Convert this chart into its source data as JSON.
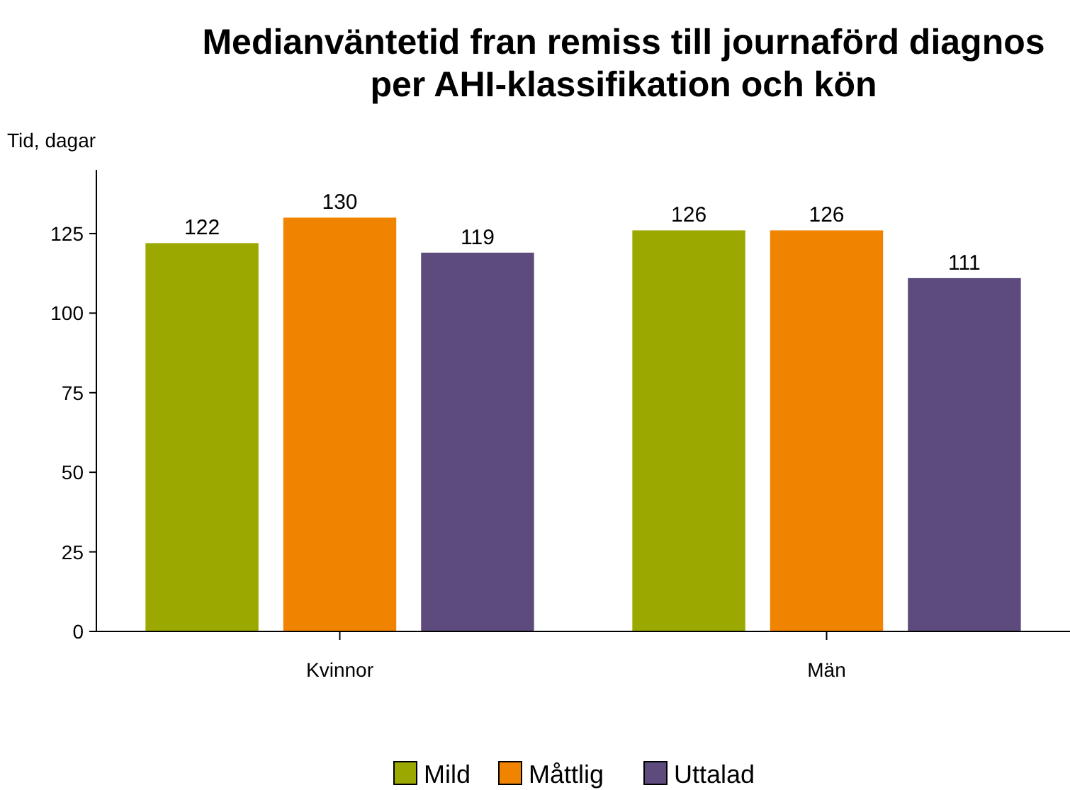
{
  "chart_data": {
    "type": "bar",
    "title": "Medianväntetid fran remiss till journaförd diagnos\nper AHI-klassifikation och kön",
    "ylabel": "Tid, dagar",
    "categories": [
      "Kvinnor",
      "Män"
    ],
    "series": [
      {
        "name": "Mild",
        "color": "#9aa800",
        "values": [
          122,
          126
        ]
      },
      {
        "name": "Måttlig",
        "color": "#f08300",
        "values": [
          130,
          126
        ]
      },
      {
        "name": "Uttalad",
        "color": "#5e4b7d",
        "values": [
          119,
          111
        ]
      }
    ],
    "ylim": [
      0,
      145
    ],
    "yticks": [
      0,
      25,
      50,
      75,
      100,
      125
    ],
    "data_labels": true,
    "grid": false,
    "legend": "bottom"
  }
}
